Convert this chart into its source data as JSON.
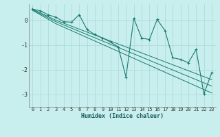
{
  "title": "",
  "xlabel": "Humidex (Indice chaleur)",
  "ylabel": "",
  "bg_color": "#c8eeed",
  "grid_color": "#a8d8d8",
  "line_color": "#1a7a6e",
  "marker_color": "#1a7a6e",
  "xlim": [
    -0.5,
    23.5
  ],
  "ylim": [
    -3.5,
    0.65
  ],
  "yticks": [
    0,
    -1,
    -2,
    -3
  ],
  "xticks": [
    0,
    1,
    2,
    3,
    4,
    5,
    6,
    7,
    8,
    9,
    10,
    11,
    12,
    13,
    14,
    15,
    16,
    17,
    18,
    19,
    20,
    21,
    22,
    23
  ],
  "series": {
    "zigzag": [
      0.45,
      0.38,
      0.22,
      0.12,
      -0.06,
      -0.08,
      0.22,
      -0.38,
      -0.58,
      -0.72,
      -0.88,
      -1.08,
      -2.3,
      0.08,
      -0.72,
      -0.78,
      0.03,
      -0.42,
      -1.52,
      -1.58,
      -1.72,
      -1.18,
      -2.98,
      -2.12
    ],
    "line1": [
      0.45,
      0.3,
      0.15,
      0.0,
      -0.12,
      -0.24,
      -0.36,
      -0.48,
      -0.6,
      -0.72,
      -0.84,
      -0.96,
      -1.08,
      -1.2,
      -1.32,
      -1.44,
      -1.56,
      -1.68,
      -1.8,
      -1.92,
      -2.04,
      -2.16,
      -2.28,
      -2.4
    ],
    "line2": [
      0.42,
      0.26,
      0.1,
      -0.06,
      -0.19,
      -0.32,
      -0.45,
      -0.58,
      -0.71,
      -0.84,
      -0.97,
      -1.1,
      -1.23,
      -1.36,
      -1.49,
      -1.62,
      -1.75,
      -1.88,
      -2.01,
      -2.14,
      -2.27,
      -2.4,
      -2.53,
      -2.66
    ],
    "line3": [
      0.4,
      0.22,
      0.04,
      -0.14,
      -0.28,
      -0.42,
      -0.56,
      -0.7,
      -0.84,
      -0.98,
      -1.12,
      -1.26,
      -1.4,
      -1.54,
      -1.68,
      -1.82,
      -1.96,
      -2.1,
      -2.24,
      -2.38,
      -2.52,
      -2.66,
      -2.8,
      -2.94
    ]
  }
}
